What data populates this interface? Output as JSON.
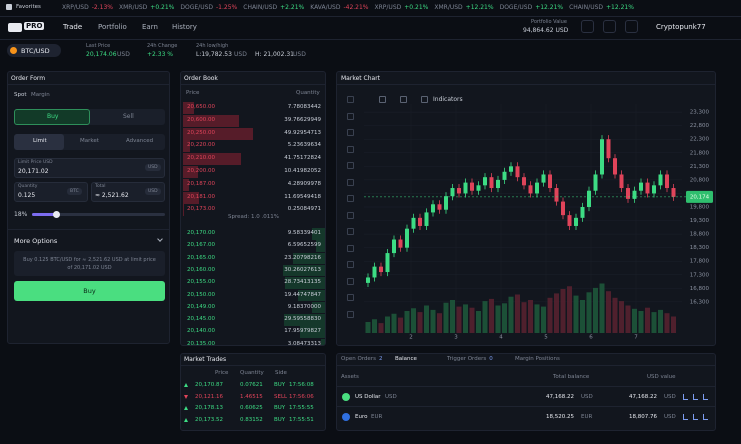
{
  "topbar": {
    "favorites": "Favorites",
    "ticker": [
      {
        "symbol": "XRP/USD",
        "change": "-2.13%"
      },
      {
        "symbol": "XMR/USD",
        "change": "+0.21%"
      },
      {
        "symbol": "DOGE/USD",
        "change": "-1.25%"
      },
      {
        "symbol": "CHAIN/USD",
        "change": "+2.21%"
      },
      {
        "symbol": "KAVA/USD",
        "change": "-42.21%"
      },
      {
        "symbol": "XRP/USD",
        "change": "+0.21%"
      },
      {
        "symbol": "XMR/USD",
        "change": "+12.21%"
      },
      {
        "symbol": "DOGE/USD",
        "change": "+12.21%"
      },
      {
        "symbol": "CHAIN/USD",
        "change": "+12.21%"
      }
    ]
  },
  "header": {
    "logo": "PRO",
    "nav": [
      "Trade",
      "Portfolio",
      "Earn",
      "History"
    ],
    "portfolio_label": "Portfolio Value",
    "portfolio_value": "94,864.62 USD",
    "user": "Cryptopunk77"
  },
  "pair": {
    "symbol": "BTC/USD",
    "last_label": "Last Price",
    "last_value": "20,174.06",
    "last_unit": "USD",
    "change_label": "24h Change",
    "change_value": "+2.33 %",
    "range_label": "24h low/high",
    "low": "L:19,782.53",
    "low_unit": "USD",
    "high": "H: 21,002.31",
    "high_unit": "USD"
  },
  "order_form": {
    "title": "Order Form",
    "modes": [
      "Spot",
      "Margin"
    ],
    "sides": [
      "Buy",
      "Sell"
    ],
    "types": [
      "Limit",
      "Market",
      "Advanced"
    ],
    "limit_label": "Limit Price USD",
    "limit_value": "20,171.02",
    "limit_unit": "USD",
    "qty_label": "Quantity",
    "qty_value": "0.125",
    "qty_unit": "BTC",
    "total_label": "Total",
    "total_value": "≈ 2,521.62",
    "total_unit": "USD",
    "slider": {
      "value": 18,
      "label": "18%"
    },
    "more": "More Options",
    "summary": "Buy 0.125 BTC/USD for ≈ 2,521.62 USD at limit price of 20,171.02 USD",
    "submit": "Buy"
  },
  "order_book": {
    "title": "Order Book",
    "cols": [
      "Price",
      "Quantity"
    ],
    "asks": [
      {
        "price": "20,650.00",
        "qty": 7.78083442
      },
      {
        "price": "20,600.00",
        "qty": 39.76629949
      },
      {
        "price": "20,250.00",
        "qty": 49.92954713
      },
      {
        "price": "20,220.00",
        "qty": 5.23639634
      },
      {
        "price": "20,210.00",
        "qty": 41.75172824
      },
      {
        "price": "20,200.00",
        "qty": 10.41982052
      },
      {
        "price": "20,187.00",
        "qty": 4.28909978
      },
      {
        "price": "20,181.00",
        "qty": 11.69549418
      },
      {
        "price": "20,173.00",
        "qty": 0.25084971
      }
    ],
    "spread": "Spread: 1.0 .011%",
    "bids": [
      {
        "price": "20,170.00",
        "qty": 9.58339401
      },
      {
        "price": "20,167.00",
        "qty": 6.59652599
      },
      {
        "price": "20,165.00",
        "qty": 23.20798216
      },
      {
        "price": "20,160.00",
        "qty": 30.26027613
      },
      {
        "price": "20,155.00",
        "qty": 28.73413135
      },
      {
        "price": "20,150.00",
        "qty": 19.44747847
      },
      {
        "price": "20,149.00",
        "qty": 9.1837
      },
      {
        "price": "20,145.00",
        "qty": 29.5955883
      },
      {
        "price": "20,140.00",
        "qty": 17.95979827
      },
      {
        "price": "20,135.00",
        "qty": 3.08473313
      }
    ]
  },
  "chart": {
    "title": "Market Chart",
    "indicators": "Indicators",
    "type": "candlestick",
    "up_color": "#3ddc84",
    "down_color": "#e0445a",
    "open": [
      17000,
      17200,
      17600,
      17400,
      18100,
      18600,
      18300,
      19000,
      19400,
      19100,
      19600,
      19900,
      19700,
      20200,
      20500,
      20300,
      20700,
      20400,
      20600,
      20900,
      20500,
      20800,
      21100,
      21300,
      20900,
      20600,
      20300,
      20700,
      21000,
      20500,
      20000,
      19500,
      19100,
      19400,
      19800,
      20400,
      21000,
      22300,
      21600,
      21000,
      20500,
      20100,
      20400,
      20700,
      20300,
      20600,
      21000,
      20500
    ],
    "high": [
      17350,
      17750,
      17750,
      18250,
      18750,
      18750,
      19150,
      19550,
      19550,
      19750,
      20050,
      20050,
      20350,
      20650,
      20650,
      20850,
      20850,
      20750,
      21050,
      21050,
      20950,
      21250,
      21450,
      21450,
      21050,
      20750,
      20850,
      21150,
      21150,
      20650,
      20150,
      19650,
      19550,
      19950,
      20550,
      21150,
      22450,
      22450,
      21750,
      21150,
      20650,
      20550,
      20850,
      20850,
      20750,
      21150,
      21150,
      20650
    ],
    "low": [
      16850,
      17050,
      17250,
      17250,
      17950,
      18150,
      18150,
      18850,
      18950,
      18950,
      19450,
      19550,
      19550,
      20050,
      20150,
      20150,
      20250,
      20250,
      20450,
      20350,
      20350,
      20650,
      20950,
      20750,
      20450,
      20150,
      20150,
      20550,
      20350,
      19850,
      19350,
      18950,
      18950,
      19250,
      19650,
      20250,
      20850,
      21450,
      20850,
      20350,
      19950,
      19950,
      20250,
      20150,
      20150,
      20450,
      20350,
      20024
    ],
    "close": [
      17200,
      17600,
      17400,
      18100,
      18600,
      18300,
      19000,
      19400,
      19100,
      19600,
      19900,
      19700,
      20200,
      20500,
      20300,
      20700,
      20400,
      20600,
      20900,
      20500,
      20800,
      21100,
      21300,
      20900,
      20600,
      20300,
      20700,
      21000,
      20500,
      20000,
      19500,
      19100,
      19400,
      19800,
      20400,
      21000,
      22300,
      21600,
      21000,
      20500,
      20100,
      20400,
      20700,
      20300,
      20600,
      21000,
      20500,
      20174
    ],
    "volume": [
      20,
      25,
      18,
      30,
      35,
      28,
      40,
      45,
      38,
      50,
      42,
      36,
      55,
      60,
      48,
      52,
      46,
      40,
      58,
      62,
      50,
      54,
      66,
      70,
      56,
      60,
      52,
      48,
      64,
      72,
      80,
      85,
      68,
      60,
      74,
      82,
      90,
      76,
      64,
      58,
      50,
      44,
      40,
      46,
      38,
      42,
      36,
      30
    ],
    "ylim": [
      16000,
      23600
    ],
    "yticks": [
      {
        "value": 23300,
        "label": "23,300"
      },
      {
        "value": 22800,
        "label": "22,800"
      },
      {
        "value": 22300,
        "label": "22,300"
      },
      {
        "value": 21800,
        "label": "21,800"
      },
      {
        "value": 21300,
        "label": "21,300"
      },
      {
        "value": 20800,
        "label": "20,800"
      },
      {
        "value": 20300,
        "label": "20,300"
      },
      {
        "value": 19800,
        "label": "19,800"
      },
      {
        "value": 19300,
        "label": "19,300"
      },
      {
        "value": 18800,
        "label": "18,800"
      },
      {
        "value": 18300,
        "label": "18,300"
      },
      {
        "value": 17800,
        "label": "17,800"
      },
      {
        "value": 17300,
        "label": "17,300"
      },
      {
        "value": 16800,
        "label": "16,800"
      },
      {
        "value": 16300,
        "label": "16,300"
      }
    ],
    "grid": true,
    "xticks": [
      2,
      3,
      4,
      5,
      6,
      7
    ],
    "last": {
      "value": 20174,
      "label": "20,174"
    }
  },
  "trades": {
    "title": "Market Trades",
    "cols": [
      "Price",
      "Quantity",
      "Side"
    ],
    "rows": [
      {
        "price": "20,170.87",
        "qty": "0.07621",
        "side": "BUY",
        "time": "17:56:08"
      },
      {
        "price": "20,121.16",
        "qty": "1.46515",
        "side": "SELL",
        "time": "17:56:06"
      },
      {
        "price": "20,178.13",
        "qty": "0.60625",
        "side": "BUY",
        "time": "17:55:55"
      },
      {
        "price": "20,173.52",
        "qty": "0.83152",
        "side": "BUY",
        "time": "17:55:51"
      }
    ]
  },
  "balances": {
    "tabs": [
      {
        "label": "Open Orders",
        "count": "2"
      },
      {
        "label": "Balance"
      },
      {
        "label": "Trigger Orders",
        "count": "0"
      },
      {
        "label": "Margin Positions"
      }
    ],
    "cols": [
      "Assets",
      "Total balance",
      "USD value"
    ],
    "rows": [
      {
        "name": "US Dollar",
        "code": "USD",
        "balance": "47,168.22",
        "balance_unit": "USD",
        "usd": "47,168.22",
        "usd_unit": "USD"
      },
      {
        "name": "Euro",
        "code": "EUR",
        "balance": "18,520.25",
        "balance_unit": "EUR",
        "usd": "18,807.76",
        "usd_unit": "USD"
      }
    ]
  }
}
